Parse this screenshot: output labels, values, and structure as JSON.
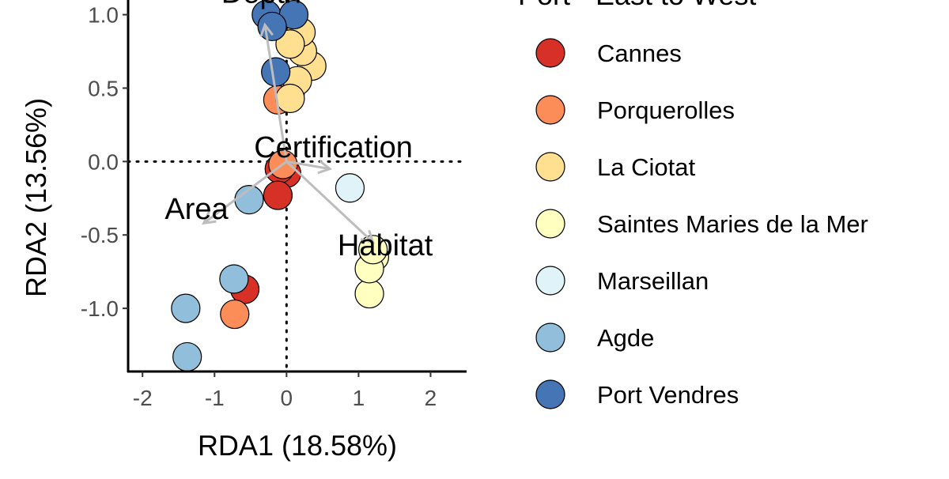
{
  "chart_data": {
    "type": "scatter",
    "title": "",
    "xlabel": "RDA1 (18.58%)",
    "ylabel": "RDA2 (13.56%)",
    "xlim": [
      -2.2,
      2.5
    ],
    "ylim": [
      -1.43,
      1.1
    ],
    "xticks": [
      -2,
      -1,
      0,
      1,
      2
    ],
    "xtick_labels": [
      "-2",
      "-1",
      "0",
      "1",
      "2"
    ],
    "yticks": [
      1.0,
      0.5,
      0.0,
      -0.5,
      -1.0
    ],
    "ytick_labels": [
      "1.0",
      "0.5",
      "0.0",
      "-0.5",
      "-1.0"
    ],
    "grid": false,
    "reference_lines": {
      "x": 0,
      "y": 0,
      "style": "dotted"
    },
    "legend": {
      "title": "Port - East to West",
      "position": "right"
    },
    "series": [
      {
        "name": "Cannes",
        "color": "#d73027",
        "points": [
          [
            0.0,
            -0.08
          ],
          [
            -0.1,
            -0.05
          ],
          [
            -0.12,
            -0.23
          ],
          [
            -0.58,
            -0.87
          ]
        ]
      },
      {
        "name": "Porquerolles",
        "color": "#fc8d59",
        "points": [
          [
            0.05,
            0.47
          ],
          [
            -0.12,
            0.42
          ],
          [
            -0.05,
            -0.02
          ],
          [
            -0.72,
            -1.04
          ]
        ]
      },
      {
        "name": "La Ciotat",
        "color": "#fee090",
        "points": [
          [
            0.35,
            0.65
          ],
          [
            0.22,
            0.75
          ],
          [
            0.2,
            0.88
          ],
          [
            0.05,
            0.8
          ],
          [
            0.15,
            0.55
          ],
          [
            0.05,
            0.43
          ]
        ]
      },
      {
        "name": "Saintes Maries de la Mer",
        "color": "#ffffbf",
        "points": [
          [
            1.15,
            -0.9
          ],
          [
            1.22,
            -0.65
          ],
          [
            1.15,
            -0.73
          ],
          [
            1.2,
            -0.6
          ]
        ]
      },
      {
        "name": "Marseillan",
        "color": "#e0f3f8",
        "points": [
          [
            0.88,
            -0.18
          ]
        ]
      },
      {
        "name": "Agde",
        "color": "#91bfdb",
        "points": [
          [
            -0.52,
            -0.26
          ],
          [
            -0.73,
            -0.8
          ],
          [
            -1.4,
            -1.0
          ],
          [
            -1.38,
            -1.33
          ]
        ]
      },
      {
        "name": "Port Vendres",
        "color": "#4575b4",
        "points": [
          [
            -0.28,
            1.0
          ],
          [
            0.1,
            1.0
          ],
          [
            -0.2,
            0.92
          ],
          [
            -0.15,
            0.61
          ]
        ]
      }
    ],
    "biplot_arrows": [
      {
        "label": "Depth",
        "x": -0.3,
        "y": 0.93,
        "label_x": -0.35,
        "label_y": 1.15
      },
      {
        "label": "Certification",
        "x": 0.6,
        "y": -0.05,
        "label_x": 0.65,
        "label_y": 0.1
      },
      {
        "label": "Area",
        "x": -1.15,
        "y": -0.42,
        "label_x": -1.25,
        "label_y": -0.32
      },
      {
        "label": "Habitat",
        "x": 1.2,
        "y": -0.55,
        "label_x": 1.37,
        "label_y": -0.57
      }
    ],
    "arrow_color": "#bdbdbd"
  }
}
